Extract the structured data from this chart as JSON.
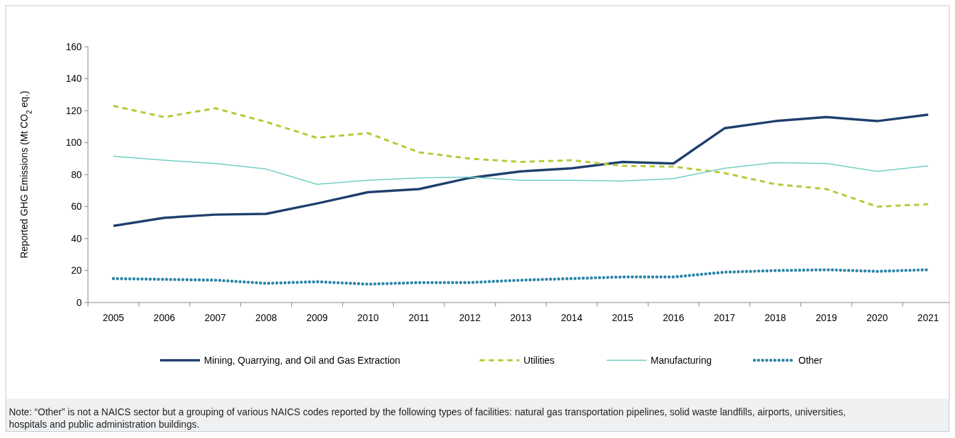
{
  "chart_data": {
    "type": "line",
    "ylabel": "Reported GHG Emissions (Mt CO$_{2}$ eq.)",
    "categories": [
      "2005",
      "2006",
      "2007",
      "2008",
      "2009",
      "2010",
      "2011",
      "2012",
      "2013",
      "2014",
      "2015",
      "2016",
      "2017",
      "2018",
      "2019",
      "2020",
      "2021"
    ],
    "series": [
      {
        "name": "Mining, Quarrying, and Oil and Gas Extraction",
        "color": "#1f3f6e",
        "line_style": "solid",
        "values": [
          48,
          53,
          55,
          55.5,
          62,
          69,
          71,
          78,
          82,
          84,
          88,
          87,
          109,
          113.5,
          116,
          113.5,
          117.5
        ]
      },
      {
        "name": "Utilities",
        "color": "#b5c933",
        "line_style": "dashed",
        "values": [
          123,
          116,
          121.5,
          113,
          103,
          106,
          94,
          90,
          88,
          89,
          85.5,
          85,
          81,
          74,
          71,
          60,
          61.5
        ]
      },
      {
        "name": "Manufacturing",
        "color": "#6fcfc0",
        "line_style": "solid",
        "values": [
          91.5,
          89,
          87,
          83.5,
          74,
          76.5,
          78,
          78.5,
          76.5,
          76.5,
          76,
          77.5,
          84,
          87.5,
          87,
          82,
          85.5
        ]
      },
      {
        "name": "Other",
        "color": "#2e86a8",
        "line_style": "dotted",
        "values": [
          15,
          14.5,
          14,
          12,
          13,
          11.5,
          12.5,
          12.5,
          14,
          15,
          16,
          16,
          19,
          20,
          20.5,
          19.5,
          20.5
        ]
      }
    ],
    "ylim": [
      0,
      160
    ],
    "yticks": [
      0,
      20,
      40,
      60,
      80,
      100,
      120,
      140,
      160
    ],
    "grid": false,
    "legend": "bottom",
    "annotations": [
      "Note: “Other” is not a NAICS sector but a grouping of various NAICS codes reported by the following types of facilities: natural gas transportation pipelines, solid waste landfills, airports, universities, hospitals and public administration buildings."
    ]
  }
}
